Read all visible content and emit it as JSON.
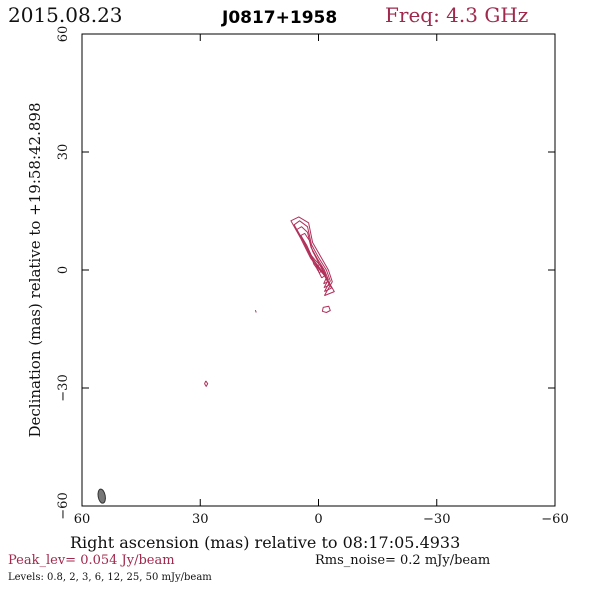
{
  "header": {
    "date": "2015.08.23",
    "source": "J0817+1958",
    "frequency": "Freq: 4.3 GHz"
  },
  "footer": {
    "peak": "Peak_lev=  0.054 Jy/beam",
    "rms": "Rms_noise=   0.2 mJy/beam",
    "levels": "Levels: 0.8,   2,   3,   6,  12,  25,  50 mJy/beam"
  },
  "colors": {
    "contour": "#b0305a",
    "beam": "#777777"
  },
  "chart_data": {
    "type": "contour",
    "xlabel": "Right ascension (mas) relative to 08:17:05.4933",
    "ylabel": "Declination (mas) relative to +19:58:42.898",
    "xlim": [
      60,
      -60
    ],
    "ylim": [
      -60,
      60
    ],
    "x_ticks": [
      60,
      30,
      0,
      -30,
      -60
    ],
    "y_ticks": [
      -60,
      -30,
      0,
      30,
      60
    ],
    "x_tick_labels": [
      "60",
      "30",
      "0",
      "−30",
      "−60"
    ],
    "y_tick_labels": [
      "−60",
      "−30",
      "0",
      "30",
      "60"
    ],
    "peak_jy_per_beam": 0.054,
    "rms_mjy_per_beam": 0.2,
    "levels_mjy_per_beam": [
      0.8,
      2,
      3,
      6,
      12,
      25,
      50
    ],
    "beam": {
      "x": 55,
      "y": -57.5,
      "major_mas": 3.6,
      "minor_mas": 1.8,
      "pa_deg": -10
    },
    "contours": [
      {
        "name": "core",
        "points": [
          [
            -1.5,
            -6.5
          ],
          [
            -4,
            -5.5
          ],
          [
            -2,
            -2
          ],
          [
            0.5,
            1
          ],
          [
            2,
            3
          ],
          [
            4.5,
            8
          ],
          [
            7,
            12.5
          ],
          [
            5,
            13.5
          ],
          [
            2.5,
            12
          ],
          [
            1.5,
            7
          ],
          [
            -0.5,
            3.5
          ],
          [
            -2.5,
            0
          ],
          [
            -3.5,
            -3
          ],
          [
            -1.5,
            -6.5
          ]
        ]
      },
      {
        "points": [
          [
            -1.5,
            -5.5
          ],
          [
            -3.3,
            -4.6
          ],
          [
            -1.8,
            -1.6
          ],
          [
            0.2,
            1.2
          ],
          [
            1.8,
            3
          ],
          [
            4,
            7.6
          ],
          [
            6.2,
            11.5
          ],
          [
            4.8,
            12.5
          ],
          [
            2.8,
            11
          ],
          [
            1.8,
            6.5
          ],
          [
            0,
            3.2
          ],
          [
            -2,
            0
          ],
          [
            -3,
            -2.8
          ],
          [
            -1.5,
            -5.5
          ]
        ]
      },
      {
        "points": [
          [
            -1.4,
            -4.5
          ],
          [
            -2.8,
            -3.8
          ],
          [
            -1.5,
            -1.2
          ],
          [
            0.3,
            1.3
          ],
          [
            1.6,
            3
          ],
          [
            3.6,
            7
          ],
          [
            5.5,
            10.3
          ],
          [
            4.3,
            11
          ],
          [
            2.8,
            9.6
          ],
          [
            1.9,
            5.8
          ],
          [
            0.3,
            2.9
          ],
          [
            -1.5,
            0
          ],
          [
            -2.5,
            -2.5
          ],
          [
            -1.4,
            -4.5
          ]
        ]
      },
      {
        "points": [
          [
            -1.3,
            -3.5
          ],
          [
            -2.3,
            -3
          ],
          [
            -1.2,
            -0.8
          ],
          [
            0.4,
            1.2
          ],
          [
            1.4,
            2.8
          ],
          [
            3,
            6.3
          ],
          [
            4.5,
            8.8
          ],
          [
            3.5,
            9.3
          ],
          [
            2.3,
            7.5
          ],
          [
            1.5,
            4.8
          ],
          [
            0.3,
            2.5
          ],
          [
            -1,
            0
          ],
          [
            -2,
            -2
          ],
          [
            -1.3,
            -3.5
          ]
        ]
      },
      {
        "points": [
          [
            -0.8,
            -2
          ],
          [
            -1.8,
            -1.3
          ],
          [
            -0.8,
            0.8
          ],
          [
            0.8,
            2.5
          ],
          [
            1.9,
            3.8
          ],
          [
            1.2,
            1.5
          ],
          [
            0.2,
            0.1
          ],
          [
            -0.8,
            -2
          ]
        ]
      },
      {
        "points": [
          [
            -0.2,
            -0.7
          ],
          [
            -1.1,
            0
          ],
          [
            -0.3,
            1.4
          ],
          [
            0.6,
            0.9
          ],
          [
            -0.2,
            -0.7
          ]
        ]
      },
      {
        "points": [
          [
            0.1,
            -0.2
          ],
          [
            -0.4,
            0.3
          ],
          [
            0.1,
            0.7
          ],
          [
            0.4,
            0.3
          ],
          [
            0.1,
            -0.2
          ]
        ]
      },
      {
        "name": "knot-south",
        "points": [
          [
            -1.2,
            -9.5
          ],
          [
            -2.6,
            -9.2
          ],
          [
            -3,
            -10.3
          ],
          [
            -2,
            -10.8
          ],
          [
            -1,
            -10.5
          ],
          [
            -1.2,
            -9.5
          ]
        ]
      },
      {
        "name": "islet-west",
        "points": [
          [
            16,
            -10.2
          ],
          [
            15.8,
            -10.8
          ]
        ]
      },
      {
        "name": "islet-southwest",
        "points": [
          [
            28.6,
            -28.2
          ],
          [
            28.1,
            -28.9
          ],
          [
            28.5,
            -29.6
          ],
          [
            28.9,
            -28.9
          ],
          [
            28.6,
            -28.2
          ]
        ]
      }
    ]
  }
}
